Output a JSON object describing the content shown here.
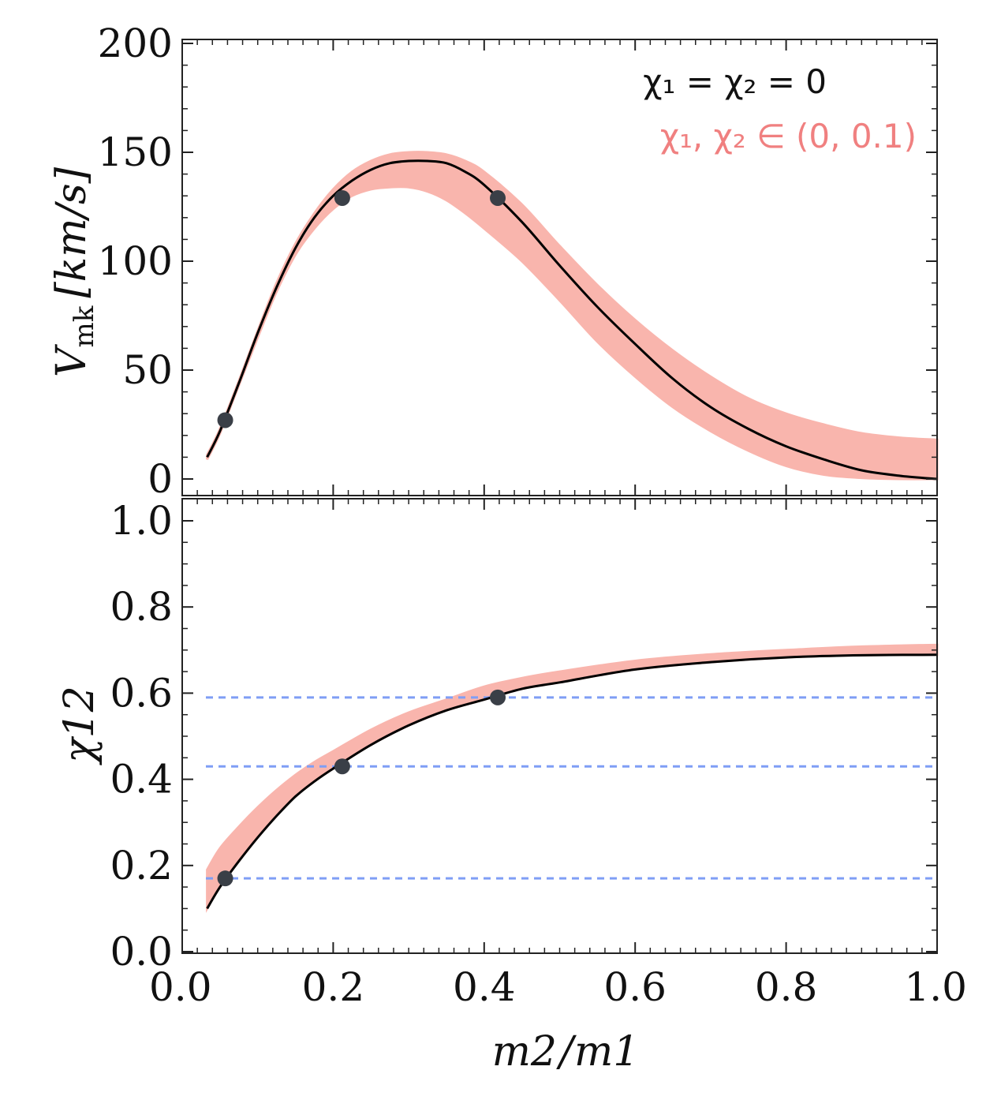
{
  "chart_data": [
    {
      "type": "line",
      "panel": "top",
      "ylabel_main": "V",
      "ylabel_sub": "mk",
      "ylabel_unit": "[km/s]",
      "xlim": [
        0.0,
        1.0
      ],
      "ylim": [
        0,
        200
      ],
      "yticks": [
        "0",
        "50",
        "100",
        "150",
        "200"
      ],
      "legend": {
        "location": "top-right",
        "entries": [
          {
            "text": "χ₁ = χ₂ = 0",
            "color": "#111111"
          },
          {
            "text": "χ₁, χ₂ ∈ (0, 0.1)",
            "color": "#f08080"
          }
        ]
      },
      "series": [
        {
          "name": "χ₁ = χ₂ = 0",
          "color": "#000000",
          "x": [
            0.033,
            0.05,
            0.075,
            0.1,
            0.125,
            0.15,
            0.175,
            0.2,
            0.225,
            0.25,
            0.275,
            0.3,
            0.325,
            0.35,
            0.375,
            0.4,
            0.45,
            0.5,
            0.55,
            0.6,
            0.65,
            0.7,
            0.75,
            0.8,
            0.85,
            0.9,
            0.95,
            1.0
          ],
          "y": [
            10,
            22,
            44,
            67,
            88,
            106,
            120,
            130,
            137,
            142,
            145,
            146,
            146,
            145,
            141,
            135,
            118,
            98,
            79,
            62,
            46,
            33,
            23,
            15,
            9,
            4,
            1.5,
            0
          ]
        },
        {
          "name": "χ₁, χ₂ ∈ (0, 0.1)",
          "color": "#f9b5ad",
          "x": [
            0.033,
            0.05,
            0.075,
            0.1,
            0.125,
            0.15,
            0.175,
            0.2,
            0.225,
            0.25,
            0.275,
            0.3,
            0.325,
            0.35,
            0.375,
            0.4,
            0.45,
            0.5,
            0.55,
            0.6,
            0.65,
            0.7,
            0.75,
            0.8,
            0.85,
            0.9,
            0.95,
            1.0
          ],
          "y_upper": [
            11,
            23,
            45,
            68,
            90,
            108,
            122,
            133,
            141,
            146,
            149,
            150,
            150,
            149,
            146,
            141,
            126,
            107,
            89,
            73,
            59,
            47,
            37,
            30,
            25,
            21,
            19,
            18
          ],
          "y_lower": [
            9,
            21,
            43,
            65,
            86,
            103,
            115,
            124,
            130,
            133,
            134,
            134,
            132,
            128,
            122,
            115,
            100,
            82,
            63,
            47,
            33,
            22,
            13,
            6,
            2,
            0.5,
            0,
            0
          ]
        },
        {
          "name": "points",
          "color": "#3a3f47",
          "x": [
            0.057,
            0.212,
            0.418
          ],
          "y": [
            27,
            129,
            129
          ]
        }
      ]
    },
    {
      "type": "line",
      "panel": "bottom",
      "ylabel": "χ12",
      "xlabel_num": "m2",
      "xlabel_den": "m1",
      "xlim": [
        0.0,
        1.0
      ],
      "ylim": [
        0.0,
        1.05
      ],
      "xticks": [
        "0.0",
        "0.2",
        "0.4",
        "0.6",
        "0.8",
        "1.0"
      ],
      "yticks": [
        "0.0",
        "0.2",
        "0.4",
        "0.6",
        "0.8",
        "1.0"
      ],
      "hlines": [
        0.17,
        0.43,
        0.59
      ],
      "series": [
        {
          "name": "χ₁ = χ₂ = 0",
          "color": "#000000",
          "x": [
            0.033,
            0.05,
            0.075,
            0.1,
            0.125,
            0.15,
            0.175,
            0.2,
            0.25,
            0.3,
            0.35,
            0.4,
            0.45,
            0.5,
            0.6,
            0.7,
            0.8,
            0.9,
            1.0
          ],
          "y": [
            0.1,
            0.15,
            0.21,
            0.265,
            0.315,
            0.36,
            0.395,
            0.425,
            0.48,
            0.525,
            0.56,
            0.585,
            0.61,
            0.625,
            0.655,
            0.672,
            0.683,
            0.688,
            0.689
          ]
        },
        {
          "name": "χ₁, χ₂ ∈ (0, 0.1)",
          "color": "#f9b5ad",
          "x": [
            0.033,
            0.05,
            0.075,
            0.1,
            0.125,
            0.15,
            0.175,
            0.2,
            0.25,
            0.3,
            0.35,
            0.4,
            0.45,
            0.5,
            0.6,
            0.7,
            0.8,
            0.9,
            1.0
          ],
          "y_upper": [
            0.19,
            0.24,
            0.29,
            0.335,
            0.375,
            0.41,
            0.44,
            0.465,
            0.515,
            0.555,
            0.585,
            0.615,
            0.635,
            0.65,
            0.675,
            0.69,
            0.7,
            0.708,
            0.712
          ],
          "y_lower": [
            0.1,
            0.15,
            0.21,
            0.265,
            0.315,
            0.36,
            0.395,
            0.425,
            0.48,
            0.525,
            0.56,
            0.585,
            0.61,
            0.625,
            0.655,
            0.672,
            0.683,
            0.688,
            0.689
          ]
        },
        {
          "name": "points",
          "color": "#3a3f47",
          "x": [
            0.057,
            0.212,
            0.418
          ],
          "y": [
            0.17,
            0.43,
            0.59
          ]
        }
      ]
    }
  ]
}
